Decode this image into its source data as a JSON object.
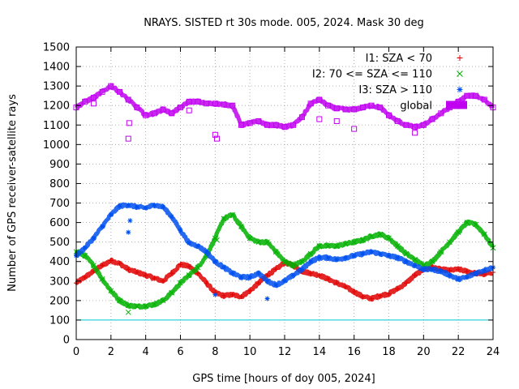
{
  "chart_data": {
    "type": "scatter",
    "title": "NRAYS. SISTED rt 30s mode. 005, 2024. Mask 30 deg",
    "xlabel": "GPS time [hours of doy 005, 2024]",
    "ylabel": "Number of GPS receiver-satellite rays",
    "xlim": [
      0,
      24
    ],
    "ylim": [
      0,
      1500
    ],
    "x_ticks": [
      "0",
      "2",
      "4",
      "6",
      "8",
      "10",
      "12",
      "14",
      "16",
      "18",
      "20",
      "22",
      "24"
    ],
    "y_ticks": [
      "0",
      "100",
      "200",
      "300",
      "400",
      "500",
      "600",
      "700",
      "800",
      "900",
      "1000",
      "1100",
      "1200",
      "1300",
      "1400",
      "1500"
    ],
    "grid": true,
    "legend_position": "top-right",
    "threshold_line": {
      "y": 100,
      "color": "#00c8d0"
    },
    "series": [
      {
        "name": "I1: SZA < 70",
        "color": "#e00000",
        "marker": "+",
        "x": [
          0,
          0.5,
          1,
          1.5,
          2,
          2.5,
          3,
          3.5,
          4,
          4.5,
          5,
          5.5,
          6,
          6.5,
          7,
          7.5,
          8,
          8.5,
          9,
          9.5,
          10,
          10.5,
          11,
          11.5,
          12,
          12.5,
          13,
          13.5,
          14,
          14.5,
          15,
          15.5,
          16,
          16.5,
          17,
          17.5,
          18,
          18.5,
          19,
          19.5,
          20,
          20.5,
          21,
          21.5,
          22,
          22.5,
          23,
          23.5,
          24
        ],
        "values": [
          290,
          320,
          350,
          380,
          405,
          390,
          360,
          345,
          330,
          315,
          300,
          340,
          385,
          375,
          340,
          290,
          240,
          225,
          230,
          220,
          250,
          290,
          330,
          360,
          395,
          380,
          350,
          340,
          330,
          310,
          290,
          270,
          245,
          220,
          210,
          225,
          235,
          260,
          290,
          330,
          360,
          370,
          360,
          355,
          360,
          350,
          340,
          335,
          345
        ],
        "outliers": []
      },
      {
        "name": "I2: 70 <= SZA <= 110",
        "color": "#00b000",
        "marker": "x",
        "x": [
          0,
          0.5,
          1,
          1.5,
          2,
          2.5,
          3,
          3.5,
          4,
          4.5,
          5,
          5.5,
          6,
          6.5,
          7,
          7.5,
          8,
          8.5,
          9,
          9.5,
          10,
          10.5,
          11,
          11.5,
          12,
          12.5,
          13,
          13.5,
          14,
          14.5,
          15,
          15.5,
          16,
          16.5,
          17,
          17.5,
          18,
          18.5,
          19,
          19.5,
          20,
          20.5,
          21,
          21.5,
          22,
          22.5,
          23,
          23.5,
          24
        ],
        "values": [
          450,
          430,
          380,
          310,
          250,
          200,
          175,
          170,
          172,
          180,
          200,
          240,
          290,
          330,
          370,
          430,
          520,
          620,
          640,
          580,
          520,
          500,
          500,
          450,
          400,
          380,
          400,
          440,
          480,
          480,
          480,
          490,
          500,
          510,
          530,
          540,
          520,
          480,
          440,
          410,
          380,
          400,
          450,
          500,
          550,
          600,
          590,
          540,
          470
        ],
        "outliers": [
          {
            "x": 3.0,
            "y": 140
          },
          {
            "x": 8.1,
            "y": 510
          }
        ]
      },
      {
        "name": "I3: SZA > 110",
        "color": "#0050f0",
        "marker": "*",
        "x": [
          0,
          0.5,
          1,
          1.5,
          2,
          2.5,
          3,
          3.5,
          4,
          4.5,
          5,
          5.5,
          6,
          6.5,
          7,
          7.5,
          8,
          8.5,
          9,
          9.5,
          10,
          10.5,
          11,
          11.5,
          12,
          12.5,
          13,
          13.5,
          14,
          14.5,
          15,
          15.5,
          16,
          16.5,
          17,
          17.5,
          18,
          18.5,
          19,
          19.5,
          20,
          20.5,
          21,
          21.5,
          22,
          22.5,
          23,
          23.5,
          24
        ],
        "values": [
          430,
          470,
          520,
          580,
          640,
          685,
          690,
          680,
          675,
          690,
          680,
          630,
          560,
          495,
          480,
          450,
          400,
          370,
          340,
          320,
          320,
          340,
          300,
          280,
          300,
          330,
          360,
          400,
          420,
          420,
          410,
          420,
          430,
          440,
          450,
          440,
          430,
          420,
          400,
          380,
          360,
          360,
          350,
          330,
          310,
          320,
          340,
          355,
          370
        ],
        "outliers": [
          {
            "x": 3.1,
            "y": 610
          },
          {
            "x": 3.0,
            "y": 550
          },
          {
            "x": 11.0,
            "y": 210
          },
          {
            "x": 8.0,
            "y": 230
          }
        ]
      },
      {
        "name": "global",
        "color": "#c000f0",
        "marker": "square",
        "x": [
          0,
          0.5,
          1,
          1.5,
          2,
          2.5,
          3,
          3.5,
          4,
          4.5,
          5,
          5.5,
          6,
          6.5,
          7,
          7.5,
          8,
          8.5,
          9,
          9.5,
          10,
          10.5,
          11,
          11.5,
          12,
          12.5,
          13,
          13.5,
          14,
          14.5,
          15,
          15.5,
          16,
          16.5,
          17,
          17.5,
          18,
          18.5,
          19,
          19.5,
          20,
          20.5,
          21,
          21.5,
          22,
          22.5,
          23,
          23.5,
          24
        ],
        "values": [
          1190,
          1220,
          1240,
          1270,
          1300,
          1270,
          1230,
          1190,
          1150,
          1160,
          1180,
          1160,
          1190,
          1220,
          1220,
          1210,
          1210,
          1205,
          1200,
          1100,
          1110,
          1120,
          1100,
          1100,
          1090,
          1100,
          1140,
          1210,
          1230,
          1200,
          1185,
          1180,
          1180,
          1190,
          1200,
          1190,
          1150,
          1120,
          1100,
          1090,
          1100,
          1130,
          1160,
          1190,
          1220,
          1250,
          1250,
          1230,
          1190
        ],
        "outliers": [
          {
            "x": 3.05,
            "y": 1110
          },
          {
            "x": 3.0,
            "y": 1030
          },
          {
            "x": 8.0,
            "y": 1050
          },
          {
            "x": 8.1,
            "y": 1030
          },
          {
            "x": 14.0,
            "y": 1130
          },
          {
            "x": 15.0,
            "y": 1120
          },
          {
            "x": 16.0,
            "y": 1080
          },
          {
            "x": 19.5,
            "y": 1060
          },
          {
            "x": 6.5,
            "y": 1175
          },
          {
            "x": 1.0,
            "y": 1210
          }
        ]
      }
    ]
  }
}
